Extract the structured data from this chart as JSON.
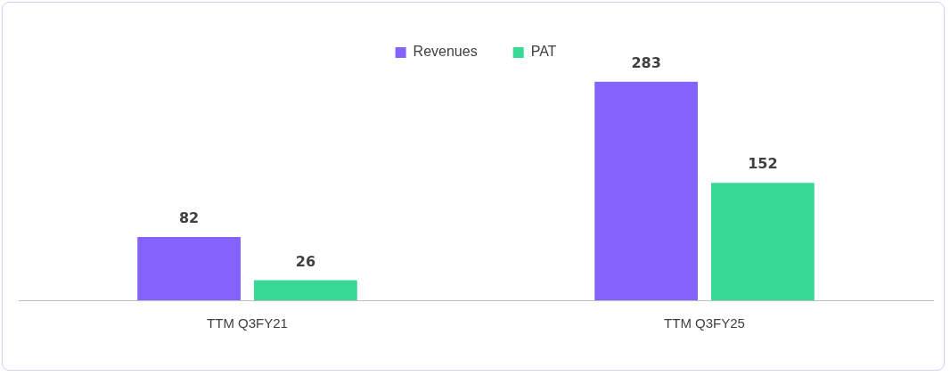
{
  "chart_data": {
    "type": "bar",
    "categories": [
      "TTM Q3FY21",
      "TTM Q3FY25"
    ],
    "series": [
      {
        "name": "Revenues",
        "color": "#8463fb",
        "values": [
          82,
          283
        ]
      },
      {
        "name": "PAT",
        "color": "#38d996",
        "values": [
          26,
          152
        ]
      }
    ],
    "data_labels": true,
    "legend": "top",
    "grid": false
  }
}
